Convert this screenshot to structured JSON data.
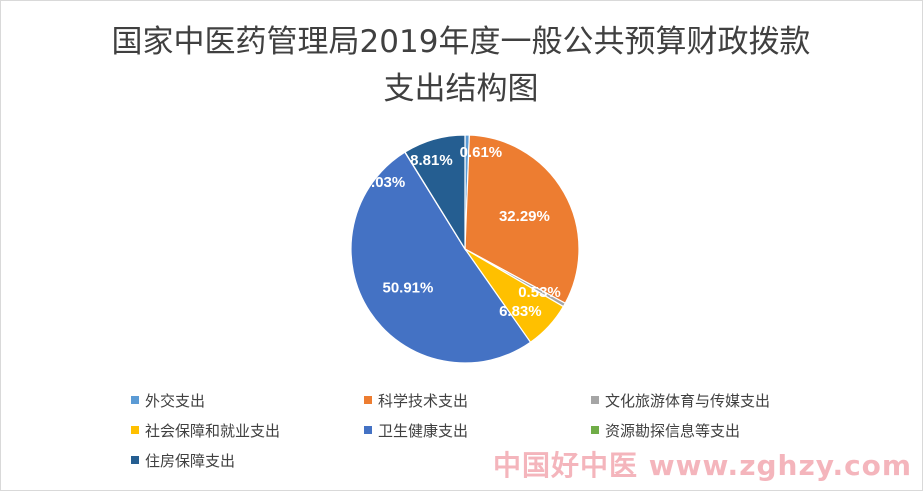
{
  "chart_data": {
    "type": "pie",
    "title": "国家中医药管理局2019年度一般公共预算财政拨款支出结构图",
    "categories": [
      "外交支出",
      "科学技术支出",
      "文化旅游体育与传媒支出",
      "社会保障和就业支出",
      "卫生健康支出",
      "资源勘探信息等支出",
      "住房保障支出"
    ],
    "values": [
      0.61,
      32.29,
      0.53,
      6.83,
      50.91,
      0.03,
      8.81
    ],
    "labels": [
      "0.61%",
      "32.29%",
      "0.53%",
      "6.83%",
      "50.91%",
      "0.03%",
      "8.81%"
    ],
    "colors": [
      "#5b9bd5",
      "#ed7d31",
      "#a5a5a5",
      "#ffc000",
      "#4472c4",
      "#70ad47",
      "#255e91"
    ],
    "legend_position": "bottom"
  },
  "watermark": "中国好中医 www.zghzy.com"
}
